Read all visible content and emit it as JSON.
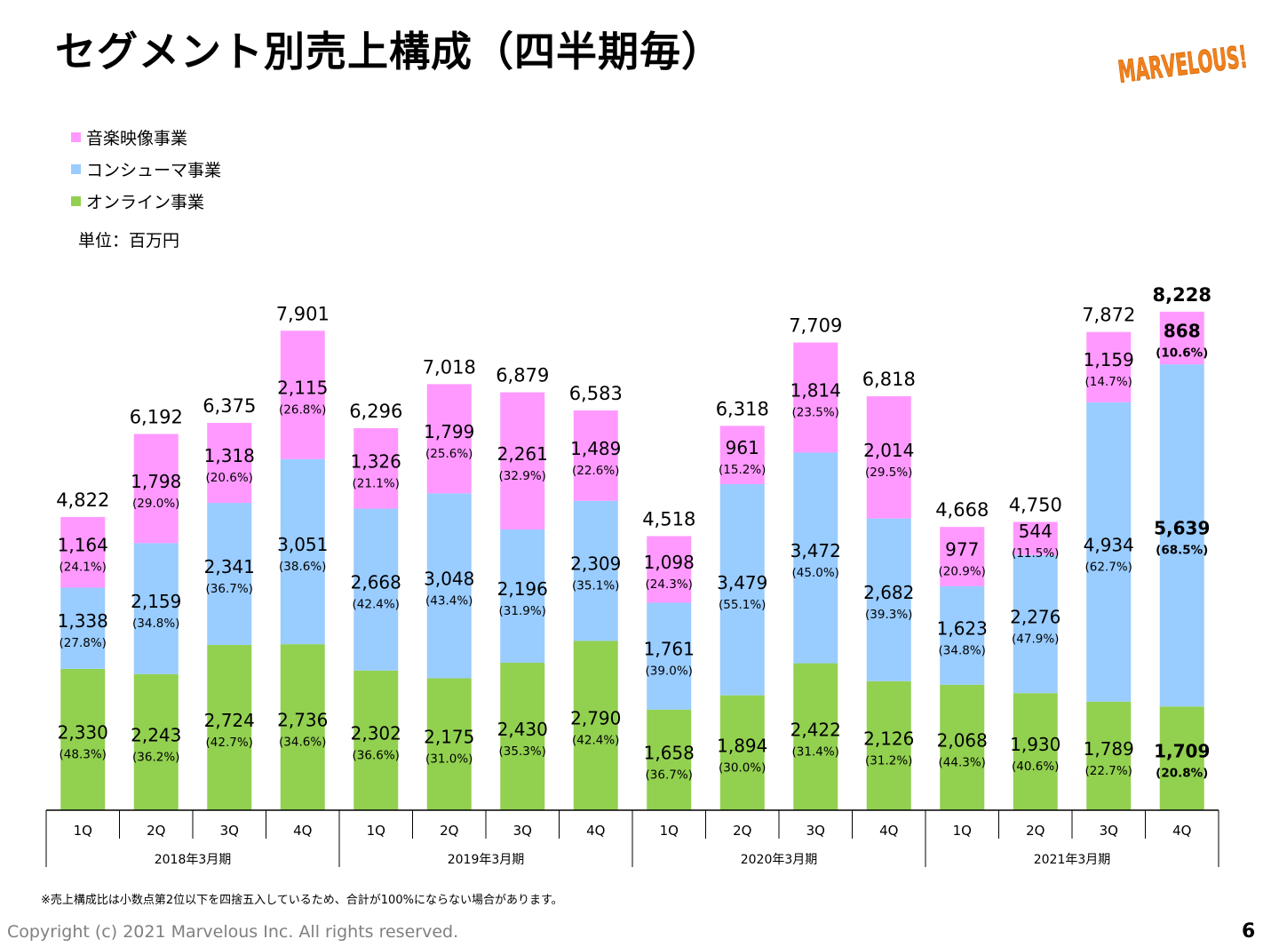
{
  "header": {
    "title": "セグメント別売上構成（四半期毎）",
    "logo_text": "MARVELOUS!"
  },
  "legend": {
    "items": [
      {
        "label": "音楽映像事業",
        "color": "#FF99FF"
      },
      {
        "label": "コンシューマ事業",
        "color": "#99CCFF"
      },
      {
        "label": "オンライン事業",
        "color": "#92D050"
      }
    ]
  },
  "unit_label": "単位：百万円",
  "footnote": "※売上構成比は小数点第2位以下を四捨五入しているため、合計が100%にならない場合があります。",
  "copyright": "Copyright (c) 2021 Marvelous Inc. All rights reserved.",
  "page_number": "6",
  "chart_data": {
    "type": "bar",
    "stacked": true,
    "categories": [
      "1Q",
      "2Q",
      "3Q",
      "4Q",
      "1Q",
      "2Q",
      "3Q",
      "4Q",
      "1Q",
      "2Q",
      "3Q",
      "4Q",
      "1Q",
      "2Q",
      "3Q",
      "4Q"
    ],
    "groups": [
      {
        "label": "2018年3月期",
        "count": 4
      },
      {
        "label": "2019年3月期",
        "count": 4
      },
      {
        "label": "2020年3月期",
        "count": 4
      },
      {
        "label": "2021年3月期",
        "count": 4
      }
    ],
    "series": [
      {
        "name": "オンライン事業",
        "color": "#92D050",
        "values": [
          2330,
          2243,
          2724,
          2736,
          2302,
          2175,
          2430,
          2790,
          1658,
          1894,
          2422,
          2126,
          2068,
          1930,
          1789,
          1709
        ],
        "value_labels": [
          "2,330",
          "2,243",
          "2,724",
          "2,736",
          "2,302",
          "2,175",
          "2,430",
          "2,790",
          "1,658",
          "1,894",
          "2,422",
          "2,126",
          "2,068",
          "1,930",
          "1,789",
          "1,709"
        ],
        "pct_labels": [
          "(48.3%)",
          "(36.2%)",
          "(42.7%)",
          "(34.6%)",
          "(36.6%)",
          "(31.0%)",
          "(35.3%)",
          "(42.4%)",
          "(36.7%)",
          "(30.0%)",
          "(31.4%)",
          "(31.2%)",
          "(44.3%)",
          "(40.6%)",
          "(22.7%)",
          "(20.8%)"
        ]
      },
      {
        "name": "コンシューマ事業",
        "color": "#99CCFF",
        "values": [
          1338,
          2159,
          2341,
          3051,
          2668,
          3048,
          2196,
          2309,
          1761,
          3479,
          3472,
          2682,
          1623,
          2276,
          4934,
          5639
        ],
        "value_labels": [
          "1,338",
          "2,159",
          "2,341",
          "3,051",
          "2,668",
          "3,048",
          "2,196",
          "2,309",
          "1,761",
          "3,479",
          "3,472",
          "2,682",
          "1,623",
          "2,276",
          "4,934",
          "5,639"
        ],
        "pct_labels": [
          "(27.8%)",
          "(34.8%)",
          "(36.7%)",
          "(38.6%)",
          "(42.4%)",
          "(43.4%)",
          "(31.9%)",
          "(35.1%)",
          "(39.0%)",
          "(55.1%)",
          "(45.0%)",
          "(39.3%)",
          "(34.8%)",
          "(47.9%)",
          "(62.7%)",
          "(68.5%)"
        ]
      },
      {
        "name": "音楽映像事業",
        "color": "#FF99FF",
        "values": [
          1164,
          1798,
          1318,
          2115,
          1326,
          1799,
          2261,
          1489,
          1098,
          961,
          1814,
          2014,
          977,
          544,
          1159,
          868
        ],
        "value_labels": [
          "1,164",
          "1,798",
          "1,318",
          "2,115",
          "1,326",
          "1,799",
          "2,261",
          "1,489",
          "1,098",
          "961",
          "1,814",
          "2,014",
          "977",
          "544",
          "1,159",
          "868"
        ],
        "pct_labels": [
          "(24.1%)",
          "(29.0%)",
          "(20.6%)",
          "(26.8%)",
          "(21.1%)",
          "(25.6%)",
          "(32.9%)",
          "(22.6%)",
          "(24.3%)",
          "(15.2%)",
          "(23.5%)",
          "(29.5%)",
          "(20.9%)",
          "(11.5%)",
          "(14.7%)",
          "(10.6%)"
        ]
      }
    ],
    "totals": [
      4822,
      6192,
      6375,
      7901,
      6296,
      7018,
      6879,
      6583,
      4518,
      6318,
      7709,
      6818,
      4668,
      4750,
      7872,
      8228
    ],
    "total_labels": [
      "4,822",
      "6,192",
      "6,375",
      "7,901",
      "6,296",
      "7,018",
      "6,879",
      "6,583",
      "4,518",
      "6,318",
      "7,709",
      "6,818",
      "4,668",
      "4,750",
      "7,872",
      "8,228"
    ],
    "highlight_last": true,
    "ylim": [
      0,
      8500
    ],
    "grid": false,
    "legend_position": "top-left"
  }
}
